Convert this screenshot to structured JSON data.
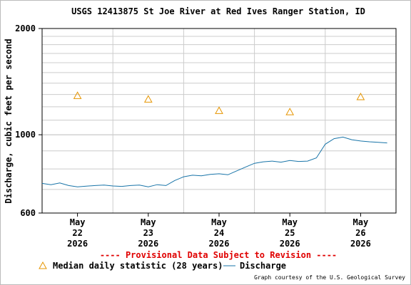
{
  "chart_data": {
    "type": "line",
    "title": "USGS 12413875 St Joe River at Red Ives Ranger Station, ID",
    "y_label": "Discharge, cubic feet per second",
    "note": "---- Provisional Data Subject to Revision ----",
    "credit": "Graph courtesy of the U.S. Geological Survey",
    "log_y": true,
    "grid": true,
    "ylim": [
      600,
      2000
    ],
    "yticks": [
      600,
      1000,
      2000
    ],
    "xlim": [
      "2026-05-22 00:00",
      "2026-05-27 00:00"
    ],
    "xticks": [
      {
        "value": "2026-05-22 12:00",
        "label": "May\n22\n2026"
      },
      {
        "value": "2026-05-23 12:00",
        "label": "May\n23\n2026"
      },
      {
        "value": "2026-05-24 12:00",
        "label": "May\n24\n2026"
      },
      {
        "value": "2026-05-25 12:00",
        "label": "May\n25\n2026"
      },
      {
        "value": "2026-05-26 12:00",
        "label": "May\n26\n2026"
      }
    ],
    "series": [
      {
        "name": "Median daily statistic (28 years)",
        "color": "#e69500",
        "marker": "triangle",
        "x": [
          "2026-05-22 12:00",
          "2026-05-23 12:00",
          "2026-05-24 12:00",
          "2026-05-25 12:00",
          "2026-05-26 12:00"
        ],
        "values": [
          1290,
          1260,
          1170,
          1160,
          1280
        ]
      },
      {
        "name": "Discharge",
        "color": "#1874a8",
        "marker": "line",
        "x": [
          "2026-05-22 00:00",
          "2026-05-22 03:00",
          "2026-05-22 06:00",
          "2026-05-22 09:00",
          "2026-05-22 12:00",
          "2026-05-22 15:00",
          "2026-05-22 18:00",
          "2026-05-22 21:00",
          "2026-05-23 00:00",
          "2026-05-23 03:00",
          "2026-05-23 06:00",
          "2026-05-23 09:00",
          "2026-05-23 12:00",
          "2026-05-23 15:00",
          "2026-05-23 18:00",
          "2026-05-23 21:00",
          "2026-05-24 00:00",
          "2026-05-24 03:00",
          "2026-05-24 06:00",
          "2026-05-24 09:00",
          "2026-05-24 12:00",
          "2026-05-24 15:00",
          "2026-05-24 18:00",
          "2026-05-24 21:00",
          "2026-05-25 00:00",
          "2026-05-25 03:00",
          "2026-05-25 06:00",
          "2026-05-25 09:00",
          "2026-05-25 12:00",
          "2026-05-25 15:00",
          "2026-05-25 18:00",
          "2026-05-25 21:00",
          "2026-05-26 00:00",
          "2026-05-26 03:00",
          "2026-05-26 06:00",
          "2026-05-26 09:00",
          "2026-05-26 12:00",
          "2026-05-26 15:00",
          "2026-05-26 18:00",
          "2026-05-26 21:00"
        ],
        "values": [
          728,
          722,
          730,
          718,
          712,
          715,
          718,
          720,
          716,
          714,
          718,
          720,
          712,
          722,
          718,
          742,
          760,
          768,
          765,
          772,
          775,
          770,
          790,
          810,
          830,
          838,
          842,
          836,
          845,
          840,
          842,
          860,
          940,
          975,
          985,
          968,
          960,
          955,
          952,
          948
        ]
      }
    ]
  }
}
